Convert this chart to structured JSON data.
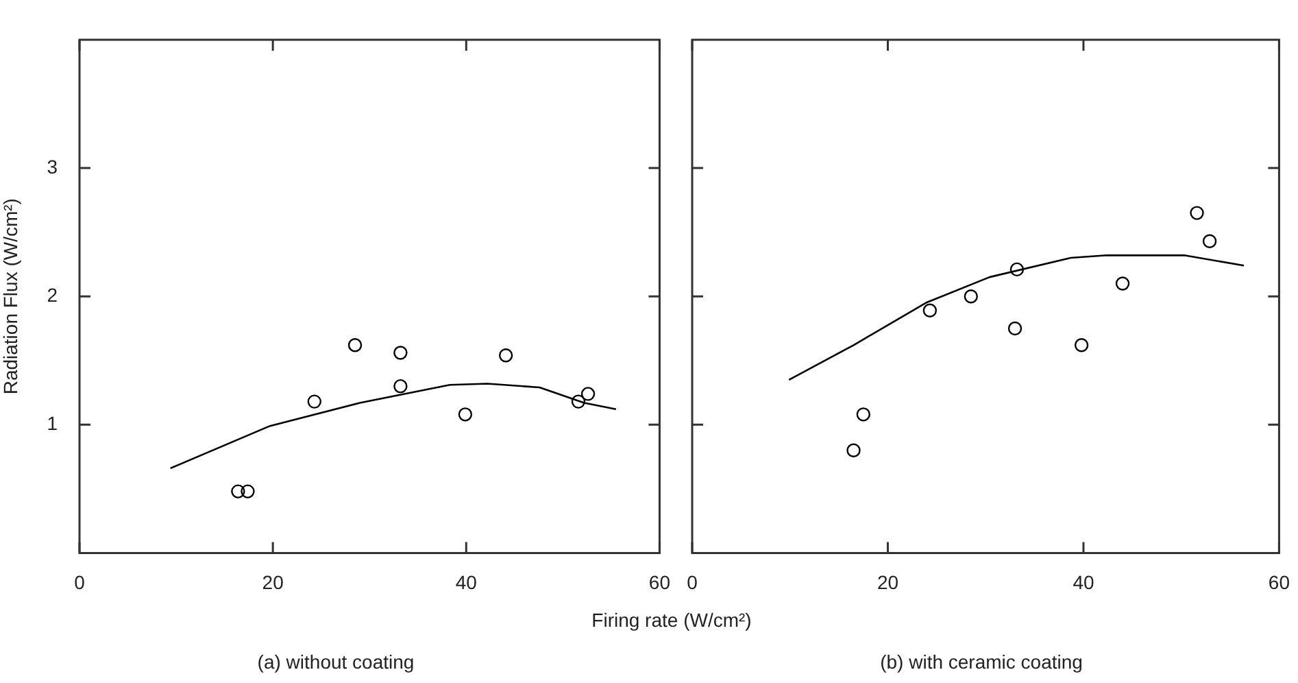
{
  "chart_data": [
    {
      "type": "scatter",
      "title": "(a) without coating",
      "xlabel": "Firing rate (W/cm²)",
      "ylabel": "Radiation Flux (W/cm²)",
      "xlim": [
        0,
        60
      ],
      "ylim": [
        0,
        4
      ],
      "xticks": [
        0,
        20,
        40,
        60
      ],
      "yticks": [
        1,
        2,
        3
      ],
      "series": [
        {
          "type": "scatter",
          "marker": "circle",
          "color": "#000000",
          "x": [
            16.4,
            17.4,
            24.3,
            28.5,
            33.2,
            33.2,
            39.9,
            44.1,
            51.6,
            52.6
          ],
          "values": [
            0.48,
            0.48,
            1.18,
            1.62,
            1.56,
            1.3,
            1.08,
            1.54,
            1.18,
            1.24
          ]
        },
        {
          "type": "line",
          "marker": "none",
          "color": "#000000",
          "x": [
            9.4,
            19.7,
            29.0,
            38.3,
            42.2,
            47.6,
            52.2,
            55.5
          ],
          "values": [
            0.66,
            0.99,
            1.17,
            1.31,
            1.32,
            1.29,
            1.17,
            1.12
          ]
        }
      ]
    },
    {
      "type": "scatter",
      "title": "(b) with ceramic coating",
      "xlim": [
        0,
        60
      ],
      "ylim": [
        0,
        4
      ],
      "xticks": [
        0,
        20,
        40,
        60
      ],
      "yticks": [
        1,
        2,
        3
      ],
      "tick_labels": "x",
      "series": [
        {
          "type": "scatter",
          "marker": "circle",
          "color": "#000000",
          "x": [
            16.5,
            17.5,
            24.3,
            28.5,
            33.2,
            33.0,
            39.8,
            44.0,
            51.6,
            52.9
          ],
          "values": [
            0.8,
            1.08,
            1.89,
            2.0,
            2.21,
            1.75,
            1.62,
            2.1,
            2.65,
            2.43
          ]
        },
        {
          "type": "line",
          "marker": "none",
          "color": "#000000",
          "x": [
            9.9,
            16.5,
            23.9,
            30.4,
            38.7,
            42.4,
            50.3,
            56.4
          ],
          "values": [
            1.35,
            1.62,
            1.95,
            2.15,
            2.3,
            2.32,
            2.32,
            2.24
          ]
        }
      ]
    }
  ]
}
